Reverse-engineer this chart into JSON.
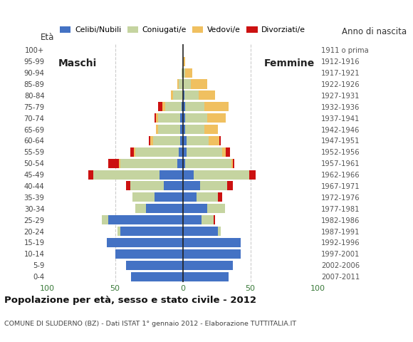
{
  "age_groups": [
    "0-4",
    "5-9",
    "10-14",
    "15-19",
    "20-24",
    "25-29",
    "30-34",
    "35-39",
    "40-44",
    "45-49",
    "50-54",
    "55-59",
    "60-64",
    "65-69",
    "70-74",
    "75-79",
    "80-84",
    "85-89",
    "90-94",
    "95-99",
    "100+"
  ],
  "birth_years": [
    "2007-2011",
    "2002-2006",
    "1997-2001",
    "1992-1996",
    "1987-1991",
    "1982-1986",
    "1977-1981",
    "1972-1976",
    "1967-1971",
    "1962-1966",
    "1957-1961",
    "1952-1956",
    "1947-1951",
    "1942-1946",
    "1937-1941",
    "1932-1936",
    "1927-1931",
    "1922-1926",
    "1917-1921",
    "1912-1916",
    "1911 o prima"
  ],
  "colors": {
    "celibe": "#4472c4",
    "coniugato": "#c5d4a0",
    "vedovo": "#f0c060",
    "divorziato": "#cc1111"
  },
  "maschi": {
    "celibe": [
      38,
      42,
      50,
      56,
      46,
      55,
      27,
      21,
      14,
      17,
      4,
      3,
      2,
      2,
      2,
      1,
      0,
      0,
      0,
      0,
      0
    ],
    "coniugato": [
      0,
      0,
      0,
      0,
      2,
      5,
      8,
      16,
      25,
      49,
      42,
      32,
      20,
      16,
      16,
      12,
      7,
      3,
      1,
      0,
      0
    ],
    "vedovo": [
      0,
      0,
      0,
      0,
      0,
      0,
      0,
      0,
      0,
      0,
      1,
      1,
      2,
      2,
      2,
      2,
      2,
      1,
      0,
      0,
      0
    ],
    "divorziato": [
      0,
      0,
      0,
      0,
      0,
      0,
      0,
      0,
      3,
      4,
      8,
      3,
      1,
      0,
      1,
      3,
      0,
      0,
      0,
      0,
      0
    ]
  },
  "femmine": {
    "celibe": [
      34,
      37,
      43,
      43,
      26,
      14,
      18,
      10,
      13,
      8,
      2,
      3,
      3,
      2,
      2,
      2,
      1,
      0,
      0,
      0,
      0
    ],
    "coniugato": [
      0,
      0,
      0,
      0,
      2,
      9,
      13,
      16,
      20,
      41,
      34,
      26,
      16,
      14,
      16,
      14,
      11,
      6,
      2,
      0,
      0
    ],
    "vedovo": [
      0,
      0,
      0,
      0,
      0,
      0,
      0,
      0,
      0,
      0,
      1,
      3,
      8,
      10,
      14,
      18,
      12,
      12,
      5,
      2,
      0
    ],
    "divorziato": [
      0,
      0,
      0,
      0,
      0,
      1,
      0,
      3,
      4,
      5,
      1,
      3,
      1,
      0,
      0,
      0,
      0,
      0,
      0,
      0,
      0
    ]
  },
  "title": "Popolazione per età, sesso e stato civile - 2012",
  "subtitle": "COMUNE DI SLUDERNO (BZ) - Dati ISTAT 1° gennaio 2012 - Elaborazione TUTTITALIA.IT",
  "label_eta": "Età",
  "label_anno": "Anno di nascita",
  "label_maschi": "Maschi",
  "label_femmine": "Femmine",
  "legend_labels": [
    "Celibi/Nubili",
    "Coniugati/e",
    "Vedovi/e",
    "Divorziati/e"
  ],
  "xlim": 100,
  "bg_color": "#ffffff",
  "grid_dash_color": "#cccccc"
}
